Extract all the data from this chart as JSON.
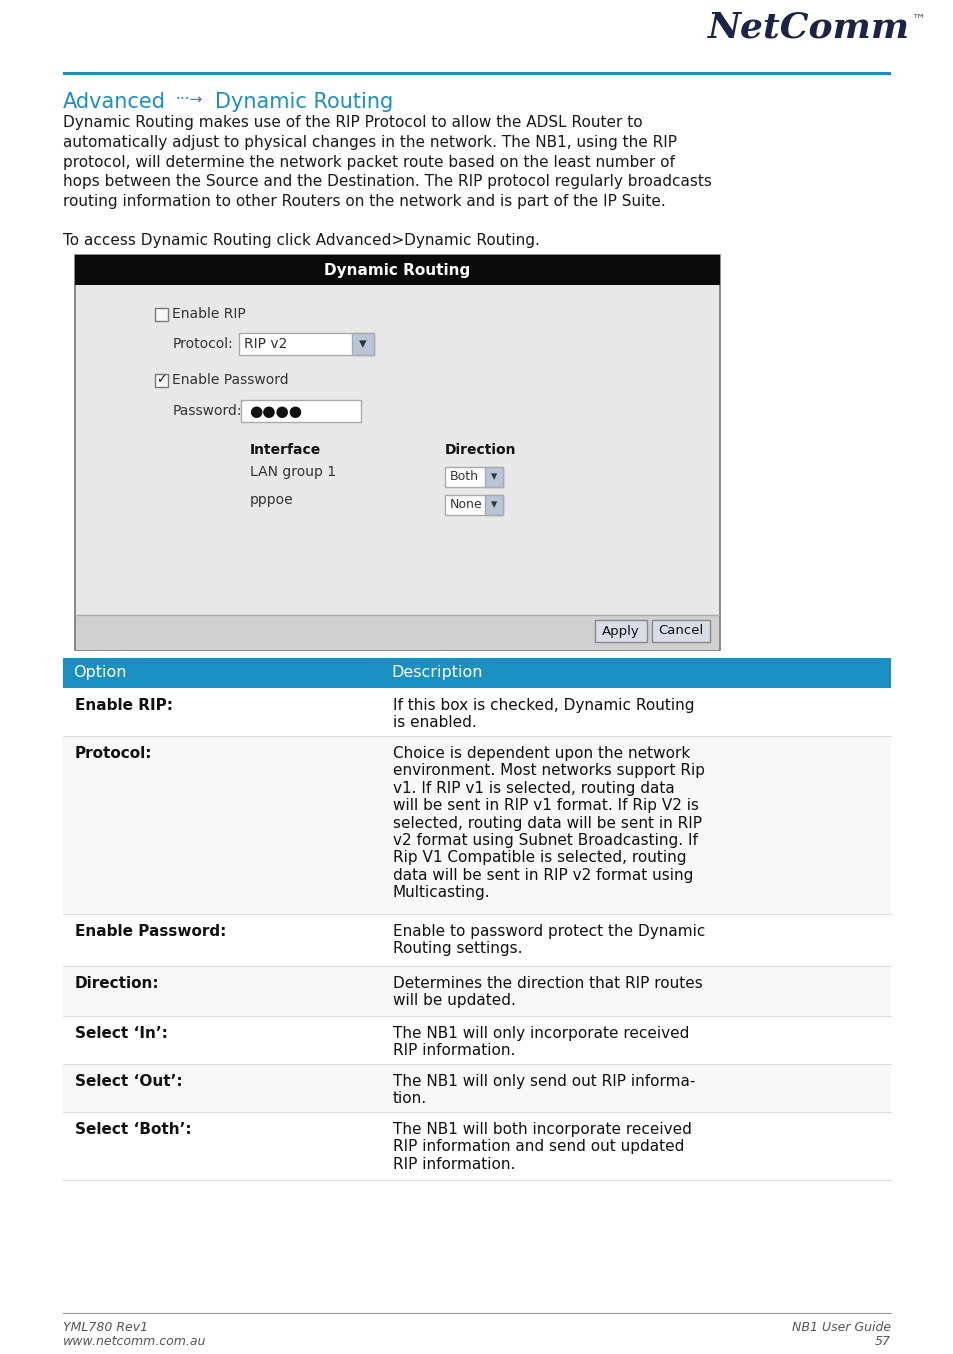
{
  "page_bg": "#ffffff",
  "header_line_color": "#1a8fc1",
  "title_color": "#1a8fc1",
  "body_text_1": "Dynamic Routing makes use of the RIP Protocol to allow the ADSL Router to\nautomatically adjust to physical changes in the network. The NB1, using the RIP\nprotocol, will determine the network packet route based on the least number of\nhops between the Source and the Destination. The RIP protocol regularly broadcasts\nrouting information to other Routers on the network and is part of the IP Suite.",
  "body_text_2": "To access Dynamic Routing click Advanced>Dynamic Routing.",
  "table_header_bg": "#1a8fc1",
  "table_col1": "Option",
  "table_col2": "Description",
  "table_rows": [
    [
      "Enable RIP:",
      "If this box is checked, Dynamic Routing\nis enabled."
    ],
    [
      "Protocol:",
      "Choice is dependent upon the network\nenvironment. Most networks support Rip\nv1. If RIP v1 is selected, routing data\nwill be sent in RIP v1 format. If Rip V2 is\nselected, routing data will be sent in RIP\nv2 format using Subnet Broadcasting. If\nRip V1 Compatible is selected, routing\ndata will be sent in RIP v2 format using\nMulticasting."
    ],
    [
      "Enable Password:",
      "Enable to password protect the Dynamic\nRouting settings."
    ],
    [
      "Direction:",
      "Determines the direction that RIP routes\nwill be updated."
    ],
    [
      "Select ‘In’:",
      "The NB1 will only incorporate received\nRIP information."
    ],
    [
      "Select ‘Out’:",
      "The NB1 will only send out RIP informa-\ntion."
    ],
    [
      "Select ‘Both’:",
      "The NB1 will both incorporate received\nRIP information and send out updated\nRIP information."
    ]
  ],
  "footer_left1": "YML780 Rev1",
  "footer_left2": "www.netcomm.com.au",
  "footer_right1": "NB1 User Guide",
  "footer_right2": "57"
}
